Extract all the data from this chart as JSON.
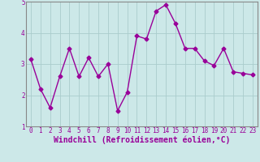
{
  "x": [
    0,
    1,
    2,
    3,
    4,
    5,
    6,
    7,
    8,
    9,
    10,
    11,
    12,
    13,
    14,
    15,
    16,
    17,
    18,
    19,
    20,
    21,
    22,
    23
  ],
  "y": [
    3.15,
    2.2,
    1.6,
    2.6,
    3.5,
    2.6,
    3.2,
    2.6,
    3.0,
    1.5,
    2.1,
    3.9,
    3.8,
    4.7,
    4.9,
    4.3,
    3.5,
    3.5,
    3.1,
    2.95,
    3.5,
    2.75,
    2.7,
    2.65
  ],
  "line_color": "#990099",
  "marker": "D",
  "markersize": 2.5,
  "linewidth": 1.0,
  "bg_color": "#cce8e8",
  "grid_color": "#aacccc",
  "xlabel": "Windchill (Refroidissement éolien,°C)",
  "xlabel_color": "#990099",
  "xlim": [
    -0.5,
    23.5
  ],
  "ylim": [
    1.0,
    5.0
  ],
  "yticks": [
    1,
    2,
    3,
    4,
    5
  ],
  "xticks": [
    0,
    1,
    2,
    3,
    4,
    5,
    6,
    7,
    8,
    9,
    10,
    11,
    12,
    13,
    14,
    15,
    16,
    17,
    18,
    19,
    20,
    21,
    22,
    23
  ],
  "tick_label_fontsize": 5.5,
  "xlabel_fontsize": 7.0,
  "border_color": "#888888"
}
